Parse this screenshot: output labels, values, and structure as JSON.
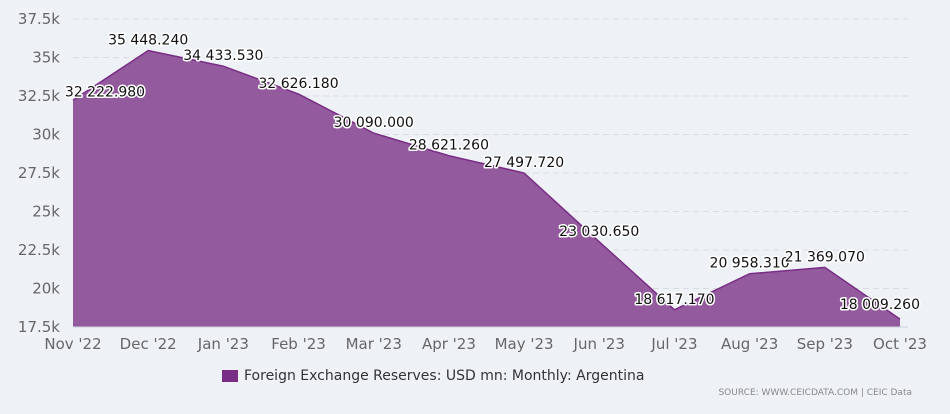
{
  "chart_data": {
    "type": "area",
    "categories": [
      "Nov '22",
      "Dec '22",
      "Jan '23",
      "Feb '23",
      "Mar '23",
      "Apr '23",
      "May '23",
      "Jun '23",
      "Jul '23",
      "Aug '23",
      "Sep '23",
      "Oct '23"
    ],
    "series": [
      {
        "name": "Foreign Exchange Reserves: USD mn: Monthly: Argentina",
        "values": [
          32222.98,
          35448.24,
          34433.53,
          32626.18,
          30090.0,
          28621.26,
          27497.72,
          23030.65,
          18617.17,
          20958.31,
          21369.07,
          18009.26
        ],
        "labels": [
          "32 222.980",
          "35 448.240",
          "34 433.530",
          "32 626.180",
          "30 090.000",
          "28 621.260",
          "27 497.720",
          "23 030.650",
          "18 617.170",
          "20 958.310",
          "21 369.070",
          "18 009.260"
        ]
      }
    ],
    "yticks": [
      "17.5k",
      "20k",
      "22.5k",
      "25k",
      "27.5k",
      "30k",
      "32.5k",
      "35k",
      "37.5k"
    ],
    "ytick_values": [
      17500,
      20000,
      22500,
      25000,
      27500,
      30000,
      32500,
      35000,
      37500
    ],
    "ylim": [
      17500,
      37500
    ],
    "grid": true,
    "legend_position": "bottom",
    "colors": {
      "fill": "#935b9e",
      "line": "#7a2d86",
      "swatch": "#7a2d86",
      "grid": "#d9dde3"
    }
  },
  "source": "SOURCE: WWW.CEICDATA.COM | CEIC Data"
}
